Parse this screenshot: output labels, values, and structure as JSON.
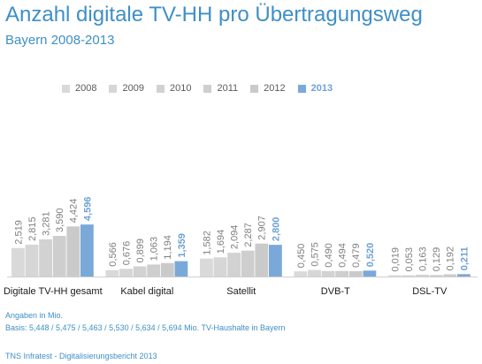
{
  "title": "Anzahl digitale TV-HH pro Übertragungsweg",
  "subtitle": "Bayern 2008-2013",
  "footnote_1": "Angaben in Mio.",
  "footnote_2": "Basis: 5,448 / 5,475 / 5,463 / 5,530 / 5,634 / 5,694 Mio. TV-Haushalte in Bayern",
  "source": "TNS Infratest - Digitalisierungsbericht 2013",
  "colors": {
    "title": "#3f8fc6",
    "bar_years": [
      "#d9d9d9",
      "#d6d6d6",
      "#d2d2d2",
      "#cecece",
      "#cacaca"
    ],
    "bar_highlight": "#7aa9d9",
    "label_years": "#7f7f7f",
    "label_highlight": "#6fa1d4"
  },
  "chart_data": {
    "type": "bar",
    "categories": [
      "Digitale TV-HH gesamt",
      "Kabel digital",
      "Satellit",
      "DVB-T",
      "DSL-TV"
    ],
    "series": [
      {
        "name": "2008",
        "values": [
          2.519,
          0.566,
          1.582,
          0.45,
          0.019
        ],
        "labels": [
          "2,519",
          "0,566",
          "1,582",
          "0,450",
          "0,019"
        ]
      },
      {
        "name": "2009",
        "values": [
          2.815,
          0.676,
          1.694,
          0.575,
          0.053
        ],
        "labels": [
          "2,815",
          "0,676",
          "1,694",
          "0,575",
          "0,053"
        ]
      },
      {
        "name": "2010",
        "values": [
          3.281,
          0.899,
          2.094,
          0.49,
          0.163
        ],
        "labels": [
          "3,281",
          "0,899",
          "2,094",
          "0,490",
          "0,163"
        ]
      },
      {
        "name": "2011",
        "values": [
          3.59,
          1.063,
          2.287,
          0.494,
          0.129
        ],
        "labels": [
          "3,590",
          "1,063",
          "2,287",
          "0,494",
          "0,129"
        ]
      },
      {
        "name": "2012",
        "values": [
          4.424,
          1.194,
          2.907,
          0.479,
          0.192
        ],
        "labels": [
          "4,424",
          "1,194",
          "2,907",
          "0,479",
          "0,192"
        ]
      },
      {
        "name": "2013",
        "values": [
          4.596,
          1.359,
          2.8,
          0.52,
          0.211
        ],
        "labels": [
          "4,596",
          "1,359",
          "2,800",
          "0,520",
          "0,211"
        ]
      }
    ],
    "highlight_series": "2013",
    "ylim": [
      0,
      4.6
    ],
    "grid": false,
    "legend_position": "top"
  }
}
